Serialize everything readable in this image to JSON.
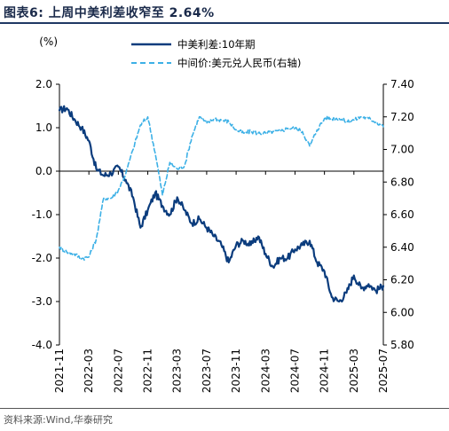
{
  "header": {
    "title": "图表6:  上周中美利差收窄至 2.64%"
  },
  "footer": {
    "source": "资料来源:Wind,华泰研究"
  },
  "colors": {
    "spread": "#0b3c7d",
    "fx": "#3cb0e6",
    "axis": "#000000"
  },
  "chart_data": {
    "type": "line",
    "title": "",
    "unit_label": "(%)",
    "legend_position": "top-center",
    "x_ticks": [
      "2021-11",
      "2022-03",
      "2022-07",
      "2022-11",
      "2023-03",
      "2023-07",
      "2023-11",
      "2024-03",
      "2024-07",
      "2024-11",
      "2025-03",
      "2025-07"
    ],
    "y_left": {
      "min": -4.0,
      "max": 2.0,
      "ticks": [
        "2.0",
        "1.0",
        "0.0",
        "-1.0",
        "-2.0",
        "-3.0",
        "-4.0"
      ]
    },
    "y_right": {
      "min": 5.8,
      "max": 7.4,
      "ticks": [
        "7.40",
        "7.20",
        "7.00",
        "6.80",
        "6.60",
        "6.40",
        "6.20",
        "6.00",
        "5.80"
      ]
    },
    "series": [
      {
        "name": "中美利差:10年期",
        "axis": "left",
        "style": "solid",
        "points": [
          [
            "2021-11",
            1.4
          ],
          [
            "2021-12",
            1.45
          ],
          [
            "2022-01",
            1.2
          ],
          [
            "2022-02",
            1.0
          ],
          [
            "2022-03",
            0.7
          ],
          [
            "2022-04",
            0.05
          ],
          [
            "2022-05",
            -0.1
          ],
          [
            "2022-06",
            -0.05
          ],
          [
            "2022-07",
            0.1
          ],
          [
            "2022-08",
            -0.2
          ],
          [
            "2022-09",
            -0.6
          ],
          [
            "2022-10",
            -1.3
          ],
          [
            "2022-11",
            -0.9
          ],
          [
            "2022-12",
            -0.5
          ],
          [
            "2023-01",
            -0.8
          ],
          [
            "2023-02",
            -1.0
          ],
          [
            "2023-03",
            -0.6
          ],
          [
            "2023-04",
            -0.9
          ],
          [
            "2023-05",
            -1.2
          ],
          [
            "2023-06",
            -1.1
          ],
          [
            "2023-07",
            -1.3
          ],
          [
            "2023-08",
            -1.5
          ],
          [
            "2023-09",
            -1.7
          ],
          [
            "2023-10",
            -2.1
          ],
          [
            "2023-11",
            -1.7
          ],
          [
            "2023-12",
            -1.6
          ],
          [
            "2024-01",
            -1.7
          ],
          [
            "2024-02",
            -1.5
          ],
          [
            "2024-03",
            -1.9
          ],
          [
            "2024-04",
            -2.2
          ],
          [
            "2024-05",
            -2.0
          ],
          [
            "2024-06",
            -2.0
          ],
          [
            "2024-07",
            -1.8
          ],
          [
            "2024-08",
            -1.7
          ],
          [
            "2024-09",
            -1.6
          ],
          [
            "2024-10",
            -2.1
          ],
          [
            "2024-11",
            -2.3
          ],
          [
            "2024-12",
            -2.9
          ],
          [
            "2025-01",
            -3.0
          ],
          [
            "2025-02",
            -2.8
          ],
          [
            "2025-03",
            -2.4
          ],
          [
            "2025-04",
            -2.7
          ],
          [
            "2025-05",
            -2.6
          ],
          [
            "2025-06",
            -2.75
          ],
          [
            "2025-07",
            -2.64
          ]
        ]
      },
      {
        "name": "中间价:美元兑人民币(右轴)",
        "axis": "right",
        "style": "dashed",
        "points": [
          [
            "2021-11",
            6.4
          ],
          [
            "2021-12",
            6.37
          ],
          [
            "2022-01",
            6.36
          ],
          [
            "2022-02",
            6.33
          ],
          [
            "2022-03",
            6.34
          ],
          [
            "2022-04",
            6.45
          ],
          [
            "2022-05",
            6.7
          ],
          [
            "2022-06",
            6.7
          ],
          [
            "2022-07",
            6.75
          ],
          [
            "2022-08",
            6.85
          ],
          [
            "2022-09",
            7.0
          ],
          [
            "2022-10",
            7.15
          ],
          [
            "2022-11",
            7.2
          ],
          [
            "2022-12",
            6.98
          ],
          [
            "2023-01",
            6.72
          ],
          [
            "2023-02",
            6.92
          ],
          [
            "2023-03",
            6.88
          ],
          [
            "2023-04",
            6.9
          ],
          [
            "2023-05",
            7.08
          ],
          [
            "2023-06",
            7.2
          ],
          [
            "2023-07",
            7.16
          ],
          [
            "2023-08",
            7.19
          ],
          [
            "2023-09",
            7.18
          ],
          [
            "2023-10",
            7.17
          ],
          [
            "2023-11",
            7.12
          ],
          [
            "2023-12",
            7.1
          ],
          [
            "2024-01",
            7.11
          ],
          [
            "2024-02",
            7.1
          ],
          [
            "2024-03",
            7.1
          ],
          [
            "2024-04",
            7.11
          ],
          [
            "2024-05",
            7.11
          ],
          [
            "2024-06",
            7.13
          ],
          [
            "2024-07",
            7.13
          ],
          [
            "2024-08",
            7.11
          ],
          [
            "2024-09",
            7.02
          ],
          [
            "2024-10",
            7.12
          ],
          [
            "2024-11",
            7.19
          ],
          [
            "2024-12",
            7.19
          ],
          [
            "2025-01",
            7.19
          ],
          [
            "2025-02",
            7.17
          ],
          [
            "2025-03",
            7.18
          ],
          [
            "2025-04",
            7.2
          ],
          [
            "2025-05",
            7.19
          ],
          [
            "2025-06",
            7.17
          ],
          [
            "2025-07",
            7.14
          ]
        ]
      }
    ]
  }
}
